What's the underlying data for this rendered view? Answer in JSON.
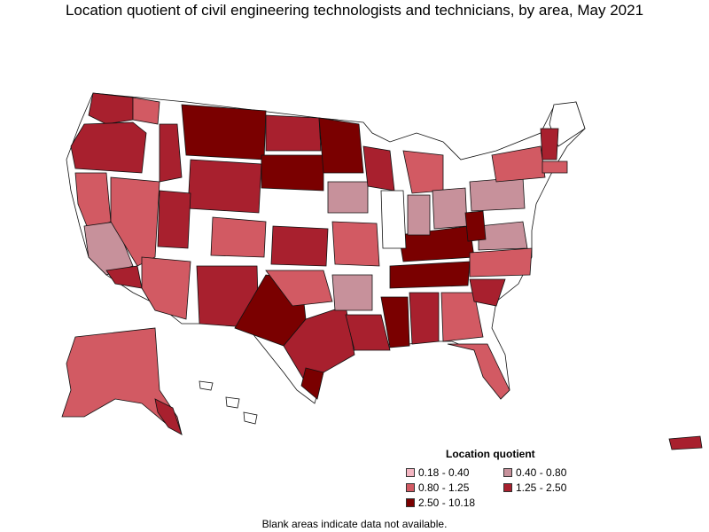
{
  "title": "Location quotient of civil engineering technologists and technicians, by area, May 2021",
  "legend": {
    "title": "Location quotient",
    "items": [
      {
        "label": "0.18 - 0.40",
        "color": "#f4b6c2"
      },
      {
        "label": "0.40 - 0.80",
        "color": "#c7919b"
      },
      {
        "label": "0.80 - 1.25",
        "color": "#d25a63"
      },
      {
        "label": "1.25 - 2.50",
        "color": "#a8202e"
      },
      {
        "label": "2.50 - 10.18",
        "color": "#7a0000"
      }
    ]
  },
  "note": "Blank areas indicate data not available.",
  "colors": {
    "blank": "#ffffff",
    "border": "#111111"
  }
}
